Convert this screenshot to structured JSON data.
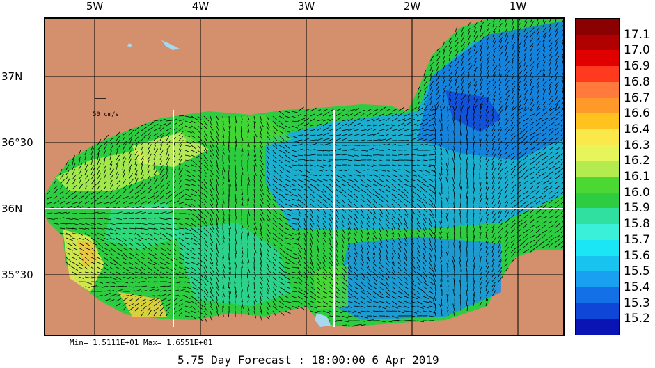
{
  "longitude_labels": [
    "5W",
    "4W",
    "3W",
    "2W",
    "1W"
  ],
  "latitude_labels": [
    "37N",
    "36°30",
    "36N",
    "35°30"
  ],
  "vector_scale_label": "50 cm/s",
  "colorbar": {
    "labels": [
      "17.1",
      "17.0",
      "16.9",
      "16.8",
      "16.7",
      "16.6",
      "16.4",
      "16.3",
      "16.2",
      "16.1",
      "16.0",
      "15.9",
      "15.8",
      "15.7",
      "15.6",
      "15.5",
      "15.4",
      "15.3",
      "15.2"
    ],
    "colors": [
      "#8b0000",
      "#b00000",
      "#e00000",
      "#ff3a1e",
      "#ff7a3c",
      "#ff9a2a",
      "#ffc21e",
      "#fbe84a",
      "#e6f55a",
      "#b4ec50",
      "#4cd832",
      "#2ecc40",
      "#30e0a0",
      "#3af0d8",
      "#1ae6f5",
      "#18c3f0",
      "#1aa0f0",
      "#1470e6",
      "#1046d8",
      "#0a14b4"
    ]
  },
  "land_color": "#d4906c",
  "minmax_text": "Min= 1.5111E+01  Max= 1.6551E+01",
  "forecast_text": "5.75 Day Forecast : 18:00:00   6 Apr 2019"
}
